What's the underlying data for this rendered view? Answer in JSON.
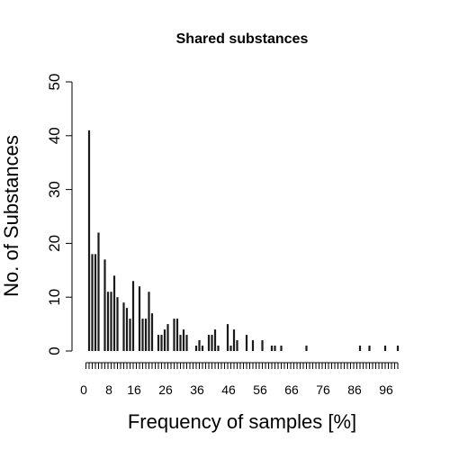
{
  "chart_data": {
    "type": "bar",
    "title": "Shared substances",
    "xlabel": "Frequency of samples [%]",
    "ylabel": "No. of Substances",
    "ylim": [
      0,
      50
    ],
    "yticks": [
      "0",
      "10",
      "20",
      "30",
      "40",
      "50"
    ],
    "xlim": [
      0,
      99
    ],
    "xtick_labels": [
      "0",
      "8",
      "16",
      "26",
      "36",
      "46",
      "56",
      "66",
      "76",
      "86",
      "96"
    ],
    "grid": false,
    "bars": [
      {
        "x": 1,
        "y": 41
      },
      {
        "x": 2,
        "y": 18
      },
      {
        "x": 3,
        "y": 18
      },
      {
        "x": 4,
        "y": 22
      },
      {
        "x": 5,
        "y": 0
      },
      {
        "x": 6,
        "y": 17
      },
      {
        "x": 7,
        "y": 11
      },
      {
        "x": 8,
        "y": 11
      },
      {
        "x": 9,
        "y": 14
      },
      {
        "x": 10,
        "y": 10
      },
      {
        "x": 11,
        "y": 0
      },
      {
        "x": 12,
        "y": 9
      },
      {
        "x": 13,
        "y": 8
      },
      {
        "x": 14,
        "y": 6
      },
      {
        "x": 15,
        "y": 13
      },
      {
        "x": 16,
        "y": 0
      },
      {
        "x": 17,
        "y": 12
      },
      {
        "x": 18,
        "y": 6
      },
      {
        "x": 19,
        "y": 6
      },
      {
        "x": 20,
        "y": 11
      },
      {
        "x": 21,
        "y": 7
      },
      {
        "x": 22,
        "y": 0
      },
      {
        "x": 23,
        "y": 3
      },
      {
        "x": 24,
        "y": 3
      },
      {
        "x": 25,
        "y": 4
      },
      {
        "x": 26,
        "y": 5
      },
      {
        "x": 27,
        "y": 0
      },
      {
        "x": 28,
        "y": 6
      },
      {
        "x": 29,
        "y": 6
      },
      {
        "x": 30,
        "y": 3
      },
      {
        "x": 31,
        "y": 4
      },
      {
        "x": 32,
        "y": 3
      },
      {
        "x": 35,
        "y": 1
      },
      {
        "x": 36,
        "y": 2
      },
      {
        "x": 37,
        "y": 1
      },
      {
        "x": 39,
        "y": 3
      },
      {
        "x": 40,
        "y": 3
      },
      {
        "x": 41,
        "y": 4
      },
      {
        "x": 42,
        "y": 1
      },
      {
        "x": 45,
        "y": 5
      },
      {
        "x": 46,
        "y": 1
      },
      {
        "x": 47,
        "y": 4
      },
      {
        "x": 48,
        "y": 2
      },
      {
        "x": 51,
        "y": 3
      },
      {
        "x": 53,
        "y": 2
      },
      {
        "x": 56,
        "y": 2
      },
      {
        "x": 59,
        "y": 1
      },
      {
        "x": 60,
        "y": 1
      },
      {
        "x": 62,
        "y": 1
      },
      {
        "x": 70,
        "y": 1
      },
      {
        "x": 87,
        "y": 1
      },
      {
        "x": 90,
        "y": 1
      },
      {
        "x": 95,
        "y": 1
      },
      {
        "x": 99,
        "y": 1
      }
    ]
  }
}
